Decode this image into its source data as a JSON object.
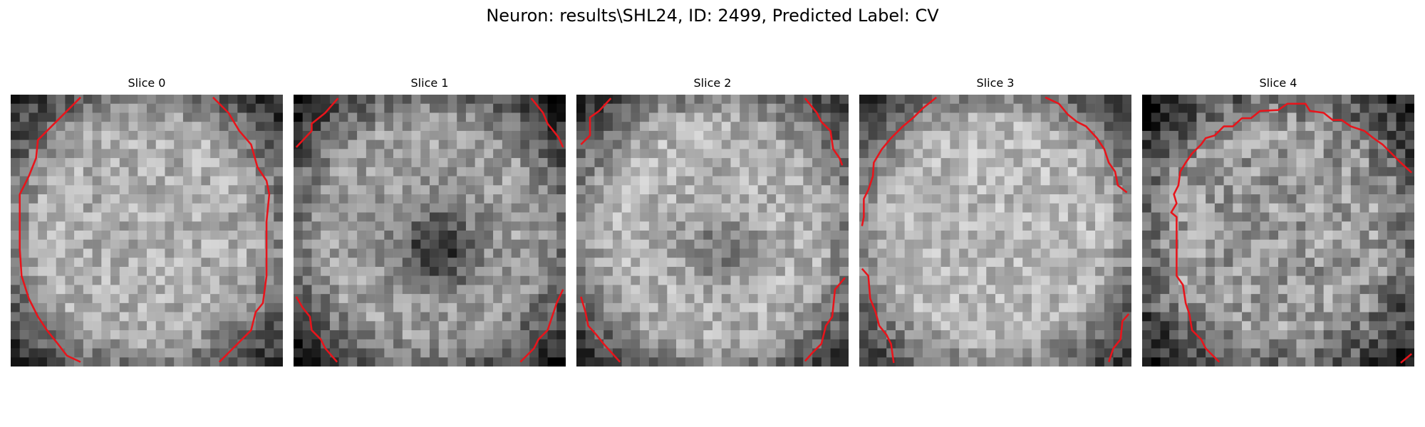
{
  "figure": {
    "title": "Neuron: results\\SHL24, ID: 2499, Predicted Label: CV"
  },
  "panels": [
    {
      "title": "Slice 0",
      "grid_size": 30,
      "seed": 11,
      "mean_level": 0.68,
      "contrast": 0.16,
      "dark_blob": 0.0,
      "outline_color": "#e8141b",
      "contour": [
        [
          [
            7.7,
            0.3
          ],
          [
            5.0,
            3.0
          ],
          [
            3.0,
            5.0
          ],
          [
            2.8,
            7.0
          ],
          [
            2.0,
            9.0
          ],
          [
            1.0,
            11.0
          ],
          [
            1.0,
            17.0
          ],
          [
            1.2,
            20.0
          ],
          [
            2.0,
            22.5
          ],
          [
            3.0,
            24.5
          ],
          [
            4.0,
            26.0
          ],
          [
            5.2,
            27.5
          ],
          [
            6.2,
            28.8
          ],
          [
            7.7,
            29.5
          ]
        ],
        [
          [
            22.3,
            0.3
          ],
          [
            24.0,
            2.0
          ],
          [
            25.2,
            4.0
          ],
          [
            26.5,
            5.5
          ],
          [
            27.2,
            8.0
          ],
          [
            28.2,
            9.5
          ],
          [
            28.5,
            11.0
          ],
          [
            28.2,
            14.0
          ],
          [
            28.2,
            20.0
          ],
          [
            27.8,
            23.0
          ],
          [
            27.0,
            24.0
          ],
          [
            26.5,
            26.0
          ],
          [
            25.5,
            27.0
          ],
          [
            24.5,
            28.0
          ],
          [
            23.0,
            29.5
          ]
        ]
      ]
    },
    {
      "title": "Slice 1",
      "grid_size": 30,
      "seed": 23,
      "mean_level": 0.62,
      "contrast": 0.16,
      "dark_blob": 0.45,
      "outline_color": "#e8141b",
      "contour": [
        [
          [
            4.9,
            0.4
          ],
          [
            3.5,
            2.0
          ],
          [
            2.0,
            3.2
          ],
          [
            2.0,
            4.0
          ],
          [
            0.3,
            5.8
          ]
        ],
        [
          [
            26.2,
            0.4
          ],
          [
            27.5,
            2.0
          ],
          [
            28.0,
            3.2
          ],
          [
            29.2,
            4.7
          ],
          [
            29.7,
            5.8
          ]
        ],
        [
          [
            0.3,
            22.3
          ],
          [
            1.0,
            23.5
          ],
          [
            1.8,
            24.5
          ],
          [
            2.0,
            26.0
          ],
          [
            3.0,
            27.0
          ],
          [
            3.5,
            28.0
          ],
          [
            4.8,
            29.5
          ]
        ],
        [
          [
            29.7,
            21.5
          ],
          [
            29.0,
            23.0
          ],
          [
            28.5,
            24.5
          ],
          [
            28.0,
            26.0
          ],
          [
            27.0,
            27.0
          ],
          [
            26.5,
            28.0
          ],
          [
            25.0,
            29.5
          ]
        ]
      ]
    },
    {
      "title": "Slice 2",
      "grid_size": 30,
      "seed": 37,
      "mean_level": 0.7,
      "contrast": 0.16,
      "dark_blob": 0.22,
      "outline_color": "#e8141b",
      "contour": [
        [
          [
            3.8,
            0.4
          ],
          [
            2.5,
            1.8
          ],
          [
            1.5,
            2.5
          ],
          [
            1.5,
            4.5
          ],
          [
            0.5,
            5.5
          ]
        ],
        [
          [
            25.2,
            0.4
          ],
          [
            26.5,
            2.0
          ],
          [
            27.0,
            3.0
          ],
          [
            28.0,
            4.0
          ],
          [
            28.3,
            6.0
          ],
          [
            29.0,
            7.0
          ],
          [
            29.3,
            7.8
          ]
        ],
        [
          [
            0.5,
            22.3
          ],
          [
            1.0,
            24.0
          ],
          [
            1.3,
            25.5
          ],
          [
            2.2,
            26.5
          ],
          [
            3.0,
            27.5
          ],
          [
            4.8,
            29.5
          ]
        ],
        [
          [
            29.6,
            20.2
          ],
          [
            28.5,
            21.5
          ],
          [
            28.2,
            24.5
          ],
          [
            27.5,
            25.5
          ],
          [
            27.0,
            27.5
          ],
          [
            26.0,
            28.5
          ],
          [
            25.2,
            29.4
          ]
        ]
      ]
    },
    {
      "title": "Slice 3",
      "grid_size": 30,
      "seed": 53,
      "mean_level": 0.72,
      "contrast": 0.15,
      "dark_blob": 0.0,
      "outline_color": "#e8141b",
      "contour": [
        [
          [
            8.5,
            0.3
          ],
          [
            7.0,
            1.5
          ],
          [
            6.0,
            2.5
          ],
          [
            4.8,
            3.5
          ],
          [
            3.5,
            4.8
          ],
          [
            2.5,
            6.0
          ],
          [
            1.6,
            7.5
          ],
          [
            1.5,
            9.0
          ],
          [
            1.0,
            10.5
          ],
          [
            0.5,
            11.5
          ],
          [
            0.5,
            13.5
          ],
          [
            0.3,
            14.5
          ]
        ],
        [
          [
            20.5,
            0.3
          ],
          [
            22.0,
            1.0
          ],
          [
            23.0,
            2.2
          ],
          [
            24.0,
            3.0
          ],
          [
            25.0,
            3.5
          ],
          [
            26.2,
            4.8
          ],
          [
            27.0,
            6.0
          ],
          [
            27.5,
            7.5
          ],
          [
            28.2,
            8.5
          ],
          [
            28.5,
            10.0
          ],
          [
            29.5,
            10.8
          ]
        ],
        [
          [
            0.3,
            19.2
          ],
          [
            1.0,
            20.0
          ],
          [
            1.2,
            22.5
          ],
          [
            1.8,
            24.0
          ],
          [
            2.2,
            25.5
          ],
          [
            3.0,
            26.5
          ],
          [
            3.5,
            27.5
          ],
          [
            3.8,
            29.6
          ]
        ],
        [
          [
            29.7,
            24.2
          ],
          [
            29.0,
            25.0
          ],
          [
            28.8,
            27.0
          ],
          [
            28.0,
            28.0
          ],
          [
            27.5,
            29.5
          ]
        ]
      ]
    },
    {
      "title": "Slice 4",
      "grid_size": 30,
      "seed": 71,
      "mean_level": 0.6,
      "contrast": 0.2,
      "dark_blob": 0.0,
      "outline_color": "#e8141b",
      "contour": [
        [
          [
            29.7,
            8.6
          ],
          [
            28.5,
            7.5
          ],
          [
            27.5,
            6.5
          ],
          [
            26.5,
            5.5
          ],
          [
            25.5,
            4.8
          ],
          [
            24.5,
            4.0
          ],
          [
            23.0,
            3.5
          ],
          [
            22.0,
            2.8
          ],
          [
            21.0,
            2.8
          ],
          [
            20.0,
            2.0
          ],
          [
            18.5,
            1.8
          ],
          [
            18.0,
            1.0
          ],
          [
            16.0,
            1.0
          ],
          [
            15.0,
            1.7
          ],
          [
            13.0,
            1.8
          ],
          [
            12.0,
            2.6
          ],
          [
            11.0,
            2.6
          ],
          [
            10.0,
            3.5
          ],
          [
            9.0,
            3.5
          ],
          [
            8.0,
            4.5
          ],
          [
            7.0,
            4.8
          ],
          [
            6.5,
            5.5
          ],
          [
            5.5,
            6.5
          ],
          [
            4.8,
            7.5
          ],
          [
            4.2,
            8.5
          ],
          [
            4.0,
            10.0
          ],
          [
            3.5,
            11.0
          ],
          [
            3.8,
            12.0
          ],
          [
            3.2,
            13.0
          ],
          [
            3.8,
            13.5
          ],
          [
            3.8,
            20.0
          ],
          [
            4.5,
            21.0
          ],
          [
            4.8,
            23.0
          ],
          [
            5.2,
            24.2
          ],
          [
            5.5,
            26.0
          ],
          [
            6.5,
            27.0
          ],
          [
            7.0,
            28.0
          ],
          [
            8.5,
            29.5
          ]
        ],
        [
          [
            29.7,
            28.6
          ],
          [
            28.5,
            29.6
          ]
        ]
      ]
    }
  ]
}
